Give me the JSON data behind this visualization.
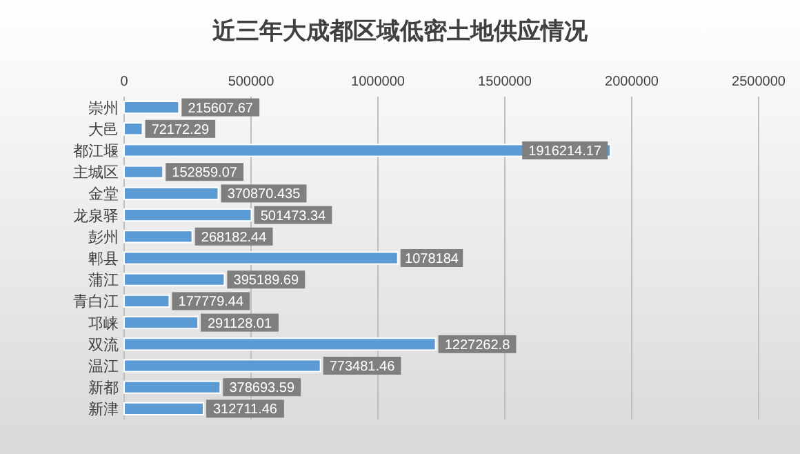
{
  "chart_data": {
    "type": "bar",
    "orientation": "horizontal",
    "title": "近三年大成都区域低密土地供应情况",
    "categories": [
      "崇州",
      "大邑",
      "都江堰",
      "主城区",
      "金堂",
      "龙泉驿",
      "彭州",
      "郫县",
      "蒲江",
      "青白江",
      "邛崃",
      "双流",
      "温江",
      "新都",
      "新津"
    ],
    "values": [
      215607.67,
      72172.29,
      1916214.17,
      152859.07,
      370870.435,
      501473.34,
      268182.44,
      1078184,
      395189.69,
      177779.44,
      291128.01,
      1227262.8,
      773481.46,
      378693.59,
      312711.46
    ],
    "color": "#5b9bd5",
    "xlim": [
      0,
      2500000
    ],
    "xticks": [
      0,
      500000,
      1000000,
      1500000,
      2000000,
      2500000
    ],
    "grid": "x",
    "data_labels": true
  }
}
